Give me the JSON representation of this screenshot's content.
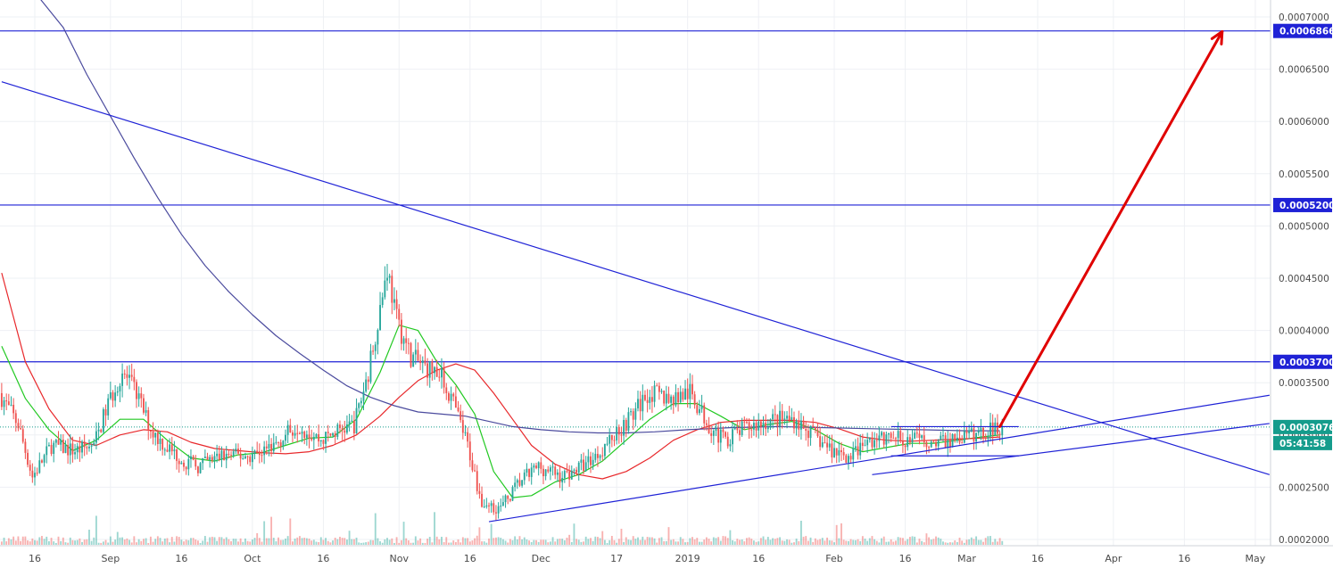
{
  "colors": {
    "background": "#ffffff",
    "grid": "#eef0f4",
    "bull": "#26a69a",
    "bear": "#ef5350",
    "ma_fast": "#22c922",
    "ma_mid": "#e8282b",
    "ma_slow": "#4b4b9e",
    "trend": "#1f22d6",
    "arrow": "#e00000",
    "last_price_tag": "#159c8c",
    "level_tag": "#1f22d6"
  },
  "chart_data": {
    "type": "candlestick",
    "title": "",
    "x_axis": {
      "tick_labels": [
        "16",
        "Sep",
        "16",
        "Oct",
        "16",
        "Nov",
        "16",
        "Dec",
        "17",
        "2019",
        "16",
        "Feb",
        "16",
        "Mar",
        "16",
        "Apr",
        "16",
        "May"
      ],
      "tick_dates": [
        "2018-08-16",
        "2018-09-01",
        "2018-09-16",
        "2018-10-01",
        "2018-10-16",
        "2018-11-01",
        "2018-11-16",
        "2018-12-01",
        "2018-12-17",
        "2019-01-01",
        "2019-01-16",
        "2019-02-01",
        "2019-02-16",
        "2019-03-01",
        "2019-03-16",
        "2019-04-01",
        "2019-04-16",
        "2019-05-01"
      ]
    },
    "y_axis": {
      "range": [
        0.00019,
        0.000718
      ],
      "tick_labels": [
        "0.0007000",
        "0.0006500",
        "0.0006000",
        "0.0005500",
        "0.0005000",
        "0.0004500",
        "0.0004000",
        "0.0003500",
        "0.0003000",
        "0.0002500",
        "0.0002000"
      ],
      "tick_values": [
        0.0007,
        0.00065,
        0.0006,
        0.00055,
        0.0005,
        0.00045,
        0.0004,
        0.00035,
        0.0003,
        0.00025,
        0.0002
      ]
    },
    "price_path": [
      [
        "2018-08-09",
        0.00034
      ],
      [
        "2018-08-13",
        0.00031
      ],
      [
        "2018-08-16",
        0.00026
      ],
      [
        "2018-08-20",
        0.00029
      ],
      [
        "2018-08-25",
        0.000285
      ],
      [
        "2018-08-29",
        0.00029
      ],
      [
        "2018-09-01",
        0.00033
      ],
      [
        "2018-09-04",
        0.00036
      ],
      [
        "2018-09-07",
        0.00034
      ],
      [
        "2018-09-10",
        0.000305
      ],
      [
        "2018-09-13",
        0.00029
      ],
      [
        "2018-09-17",
        0.000275
      ],
      [
        "2018-09-20",
        0.00027
      ],
      [
        "2018-09-25",
        0.00028
      ],
      [
        "2018-10-01",
        0.00028
      ],
      [
        "2018-10-06",
        0.00029
      ],
      [
        "2018-10-11",
        0.00031
      ],
      [
        "2018-10-16",
        0.000295
      ],
      [
        "2018-10-20",
        0.000305
      ],
      [
        "2018-10-23",
        0.00031
      ],
      [
        "2018-10-26",
        0.00036
      ],
      [
        "2018-10-28",
        0.00041
      ],
      [
        "2018-10-30",
        0.00046
      ],
      [
        "2018-11-01",
        0.00041
      ],
      [
        "2018-11-04",
        0.000375
      ],
      [
        "2018-11-07",
        0.000365
      ],
      [
        "2018-11-10",
        0.00036
      ],
      [
        "2018-11-13",
        0.00033
      ],
      [
        "2018-11-16",
        0.00029
      ],
      [
        "2018-11-19",
        0.000235
      ],
      [
        "2018-11-23",
        0.00023
      ],
      [
        "2018-11-27",
        0.000255
      ],
      [
        "2018-12-01",
        0.00027
      ],
      [
        "2018-12-06",
        0.00026
      ],
      [
        "2018-12-10",
        0.00027
      ],
      [
        "2018-12-13",
        0.00028
      ],
      [
        "2018-12-17",
        0.0003
      ],
      [
        "2018-12-21",
        0.00032
      ],
      [
        "2018-12-24",
        0.00034
      ],
      [
        "2018-12-29",
        0.000335
      ],
      [
        "2019-01-02",
        0.00034
      ],
      [
        "2019-01-06",
        0.00031
      ],
      [
        "2019-01-09",
        0.000295
      ],
      [
        "2019-01-13",
        0.000305
      ],
      [
        "2019-01-16",
        0.00031
      ],
      [
        "2019-01-20",
        0.000315
      ],
      [
        "2019-01-24",
        0.000315
      ],
      [
        "2019-01-28",
        0.0003
      ],
      [
        "2019-02-01",
        0.000285
      ],
      [
        "2019-02-05",
        0.00028
      ],
      [
        "2019-02-09",
        0.000295
      ],
      [
        "2019-02-14",
        0.000297
      ],
      [
        "2019-02-19",
        0.000295
      ],
      [
        "2019-02-24",
        0.000293
      ],
      [
        "2019-03-01",
        0.000298
      ],
      [
        "2019-03-05",
        0.000302
      ],
      [
        "2019-03-08",
        0.00030761
      ]
    ],
    "series": [
      {
        "values": [
          [
            "2018-08-09",
            0.000385
          ],
          [
            "2018-08-14",
            0.000335
          ],
          [
            "2018-08-19",
            0.000305
          ],
          [
            "2018-08-24",
            0.000285
          ],
          [
            "2018-08-29",
            0.000295
          ],
          [
            "2018-09-03",
            0.000315
          ],
          [
            "2018-09-08",
            0.000315
          ],
          [
            "2018-09-13",
            0.000295
          ],
          [
            "2018-09-18",
            0.000278
          ],
          [
            "2018-09-23",
            0.000275
          ],
          [
            "2018-09-28",
            0.000281
          ],
          [
            "2018-10-03",
            0.000283
          ],
          [
            "2018-10-08",
            0.00029
          ],
          [
            "2018-10-13",
            0.000297
          ],
          [
            "2018-10-18",
            0.000298
          ],
          [
            "2018-10-23",
            0.000315
          ],
          [
            "2018-10-28",
            0.00036
          ],
          [
            "2018-11-01",
            0.000405
          ],
          [
            "2018-11-05",
            0.0004
          ],
          [
            "2018-11-09",
            0.00037
          ],
          [
            "2018-11-13",
            0.000348
          ],
          [
            "2018-11-17",
            0.00032
          ],
          [
            "2018-11-21",
            0.000265
          ],
          [
            "2018-11-25",
            0.00024
          ],
          [
            "2018-11-29",
            0.000242
          ],
          [
            "2018-12-04",
            0.000255
          ],
          [
            "2018-12-09",
            0.000262
          ],
          [
            "2018-12-14",
            0.000275
          ],
          [
            "2018-12-19",
            0.000295
          ],
          [
            "2018-12-24",
            0.000315
          ],
          [
            "2018-12-29",
            0.00033
          ],
          [
            "2019-01-03",
            0.00033
          ],
          [
            "2019-01-08",
            0.000318
          ],
          [
            "2019-01-13",
            0.000305
          ],
          [
            "2019-01-18",
            0.00031
          ],
          [
            "2019-01-23",
            0.000313
          ],
          [
            "2019-01-28",
            0.000305
          ],
          [
            "2019-02-02",
            0.000292
          ],
          [
            "2019-02-07",
            0.000284
          ],
          [
            "2019-02-12",
            0.000288
          ],
          [
            "2019-02-17",
            0.000292
          ],
          [
            "2019-02-22",
            0.000292
          ],
          [
            "2019-02-27",
            0.000295
          ],
          [
            "2019-03-04",
            0.000298
          ],
          [
            "2019-03-08",
            0.0003
          ]
        ]
      },
      {
        "values": [
          [
            "2018-08-09",
            0.000455
          ],
          [
            "2018-08-14",
            0.00037
          ],
          [
            "2018-08-19",
            0.000325
          ],
          [
            "2018-08-24",
            0.000295
          ],
          [
            "2018-08-29",
            0.00029
          ],
          [
            "2018-09-03",
            0.0003
          ],
          [
            "2018-09-08",
            0.000305
          ],
          [
            "2018-09-13",
            0.000303
          ],
          [
            "2018-09-18",
            0.000293
          ],
          [
            "2018-09-23",
            0.000287
          ],
          [
            "2018-09-28",
            0.000285
          ],
          [
            "2018-10-03",
            0.000283
          ],
          [
            "2018-10-08",
            0.000282
          ],
          [
            "2018-10-13",
            0.000284
          ],
          [
            "2018-10-18",
            0.00029
          ],
          [
            "2018-10-23",
            0.0003
          ],
          [
            "2018-10-28",
            0.000318
          ],
          [
            "2018-11-01",
            0.000336
          ],
          [
            "2018-11-05",
            0.000352
          ],
          [
            "2018-11-09",
            0.000362
          ],
          [
            "2018-11-13",
            0.000368
          ],
          [
            "2018-11-17",
            0.000362
          ],
          [
            "2018-11-21",
            0.00034
          ],
          [
            "2018-11-25",
            0.000315
          ],
          [
            "2018-11-29",
            0.00029
          ],
          [
            "2018-12-04",
            0.000272
          ],
          [
            "2018-12-09",
            0.000262
          ],
          [
            "2018-12-14",
            0.000258
          ],
          [
            "2018-12-19",
            0.000265
          ],
          [
            "2018-12-24",
            0.000278
          ],
          [
            "2018-12-29",
            0.000295
          ],
          [
            "2019-01-03",
            0.000305
          ],
          [
            "2019-01-08",
            0.000312
          ],
          [
            "2019-01-13",
            0.000314
          ],
          [
            "2019-01-18",
            0.000314
          ],
          [
            "2019-01-23",
            0.000314
          ],
          [
            "2019-01-28",
            0.000312
          ],
          [
            "2019-02-02",
            0.000306
          ],
          [
            "2019-02-07",
            0.000298
          ],
          [
            "2019-02-12",
            0.000295
          ],
          [
            "2019-02-17",
            0.000294
          ],
          [
            "2019-02-22",
            0.000295
          ],
          [
            "2019-02-27",
            0.000296
          ],
          [
            "2019-03-04",
            0.000297
          ],
          [
            "2019-03-08",
            0.000298
          ]
        ]
      },
      {
        "values": [
          [
            "2018-08-17",
            0.000718
          ],
          [
            "2018-08-22",
            0.00069
          ],
          [
            "2018-08-27",
            0.000645
          ],
          [
            "2018-09-01",
            0.000605
          ],
          [
            "2018-09-06",
            0.000565
          ],
          [
            "2018-09-11",
            0.000527
          ],
          [
            "2018-09-16",
            0.000492
          ],
          [
            "2018-09-21",
            0.000462
          ],
          [
            "2018-09-26",
            0.000437
          ],
          [
            "2018-10-01",
            0.000415
          ],
          [
            "2018-10-06",
            0.000395
          ],
          [
            "2018-10-11",
            0.000378
          ],
          [
            "2018-10-16",
            0.000362
          ],
          [
            "2018-10-21",
            0.000347
          ],
          [
            "2018-10-26",
            0.000336
          ],
          [
            "2018-10-31",
            0.000328
          ],
          [
            "2018-11-05",
            0.000322
          ],
          [
            "2018-11-10",
            0.00032
          ],
          [
            "2018-11-15",
            0.000318
          ],
          [
            "2018-11-20",
            0.000313
          ],
          [
            "2018-11-25",
            0.000308
          ],
          [
            "2018-12-01",
            0.000305
          ],
          [
            "2018-12-07",
            0.000303
          ],
          [
            "2018-12-13",
            0.000302
          ],
          [
            "2018-12-19",
            0.000302
          ],
          [
            "2018-12-25",
            0.000303
          ],
          [
            "2019-01-01",
            0.000305
          ],
          [
            "2019-01-10",
            0.000307
          ],
          [
            "2019-01-20",
            0.000308
          ],
          [
            "2019-01-30",
            0.000307
          ],
          [
            "2019-02-09",
            0.000306
          ],
          [
            "2019-02-19",
            0.000305
          ],
          [
            "2019-03-01",
            0.000304
          ],
          [
            "2019-03-08",
            0.000304
          ]
        ]
      }
    ],
    "horizontal_levels": [
      {
        "value": 0.0006866,
        "label": "0.0006866"
      },
      {
        "value": 0.00052,
        "label": "0.0005200"
      },
      {
        "value": 0.00037,
        "label": "0.0003700"
      }
    ],
    "last_price": {
      "label": "0.0003076",
      "value": 0.00030761,
      "countdown": "05:41:58"
    },
    "trend_lines": [
      {
        "from": [
          "2018-08-09",
          0.000638
        ],
        "to": [
          "2019-05-04",
          0.000262
        ]
      },
      {
        "from": [
          "2018-11-20",
          0.000217
        ],
        "to": [
          "2019-05-04",
          0.000338
        ]
      },
      {
        "from": [
          "2019-02-09",
          0.000262
        ],
        "to": [
          "2019-05-04",
          0.000311
        ]
      },
      {
        "from": [
          "2019-02-13",
          0.000308
        ],
        "to": [
          "2019-03-12",
          0.000308
        ]
      },
      {
        "from": [
          "2019-02-13",
          0.00028
        ],
        "to": [
          "2019-03-12",
          0.00028
        ]
      }
    ],
    "arrow": {
      "from": [
        "2019-03-08",
        0.000308
      ],
      "to": [
        "2019-04-24",
        0.000686
      ]
    },
    "grid": true
  }
}
